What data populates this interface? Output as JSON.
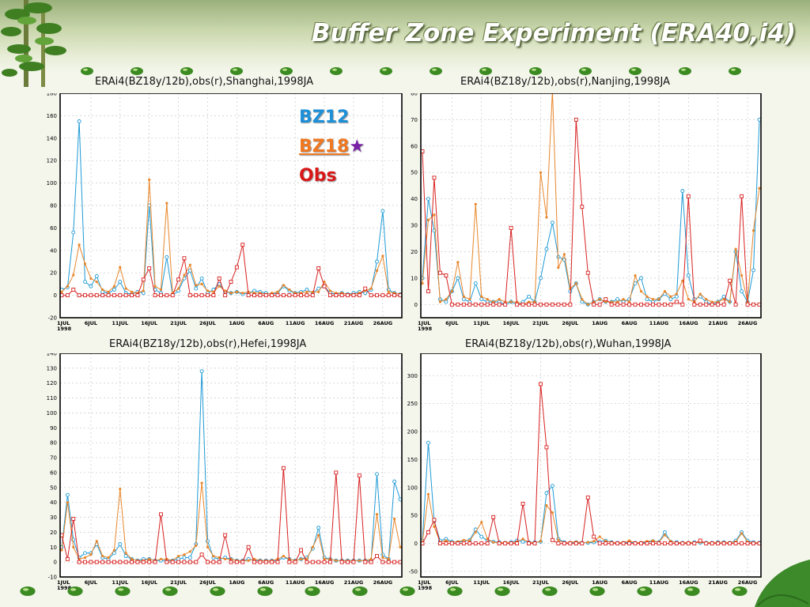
{
  "header": {
    "title": "Buffer Zone Experiment (ERA40,i4)"
  },
  "legend": {
    "bz12": "BZ12",
    "bz18": "BZ18",
    "star": "★",
    "obs": "Obs"
  },
  "colors": {
    "bz12": "#1e9ad6",
    "bz18": "#e8862a",
    "obs": "#d82020",
    "grid": "#c8c8c8"
  },
  "decor": {
    "tree": "bamboo-tree-icon",
    "leaf": "green-leaf-icon",
    "bullets": "green-bead-icon"
  },
  "chart_data": [
    {
      "type": "line",
      "title": "ERAi4(BZ18y/12b),obs(r),Shanghai,1998JA",
      "ylim": [
        -20,
        180
      ],
      "yticks": [
        -20,
        0,
        20,
        40,
        60,
        80,
        100,
        120,
        140,
        160,
        180
      ],
      "xticks": [
        "1JUL\n1998",
        "6JUL",
        "11JUL",
        "16JUL",
        "21JUL",
        "26JUL",
        "1AUG",
        "6AUG",
        "11AUG",
        "16AUG",
        "21AUG",
        "26AUG"
      ],
      "series": [
        {
          "key": "bz12",
          "values": [
            5,
            7,
            56,
            155,
            12,
            8,
            17,
            3,
            2,
            5,
            12,
            2,
            1,
            3,
            2,
            80,
            5,
            2,
            34,
            0,
            4,
            15,
            22,
            6,
            15,
            2,
            5,
            10,
            3,
            2,
            3,
            1,
            2,
            4,
            3,
            2,
            1,
            2,
            8,
            4,
            2,
            3,
            5,
            2,
            6,
            8,
            2,
            1,
            2,
            1,
            2,
            3,
            2,
            5,
            30,
            75,
            5,
            2,
            1
          ]
        },
        {
          "key": "bz18",
          "values": [
            3,
            8,
            18,
            45,
            28,
            15,
            12,
            5,
            3,
            8,
            25,
            6,
            3,
            2,
            4,
            103,
            8,
            5,
            82,
            2,
            6,
            18,
            27,
            9,
            10,
            4,
            3,
            8,
            4,
            2,
            3,
            2,
            3,
            2,
            2,
            1,
            2,
            3,
            9,
            5,
            2,
            2,
            3,
            3,
            3,
            12,
            4,
            2,
            2,
            1,
            1,
            2,
            4,
            6,
            22,
            35,
            3,
            2,
            1
          ]
        },
        {
          "key": "obs",
          "values": [
            0,
            0,
            5,
            0,
            0,
            0,
            0,
            0,
            0,
            0,
            0,
            0,
            0,
            0,
            14,
            24,
            0,
            0,
            0,
            0,
            14,
            33,
            0,
            0,
            0,
            0,
            0,
            15,
            0,
            12,
            25,
            45,
            0,
            0,
            0,
            0,
            0,
            0,
            0,
            0,
            0,
            0,
            0,
            0,
            24,
            8,
            0,
            0,
            0,
            0,
            0,
            0,
            6,
            0,
            0,
            0,
            0,
            0,
            0
          ]
        }
      ]
    },
    {
      "type": "line",
      "title": "ERAi4(BZ18y/12b),obs(r),Nanjing,1998JA",
      "ylim": [
        -5,
        80
      ],
      "yticks": [
        0,
        10,
        20,
        30,
        40,
        50,
        60,
        70,
        80
      ],
      "xticks": [
        "1JUL\n1998",
        "6JUL",
        "11JUL",
        "16JUL",
        "21JUL",
        "26JUL",
        "1AUG",
        "6AUG",
        "11AUG",
        "16AUG",
        "21AUG",
        "26AUG"
      ],
      "series": [
        {
          "key": "bz12",
          "values": [
            10,
            40,
            28,
            2,
            1,
            5,
            10,
            2,
            1,
            8,
            2,
            1,
            1,
            1,
            0,
            1,
            0,
            1,
            3,
            1,
            10,
            21,
            31,
            18,
            17,
            5,
            8,
            1,
            0,
            1,
            2,
            1,
            1,
            2,
            1,
            2,
            8,
            10,
            2,
            1,
            2,
            4,
            2,
            3,
            43,
            11,
            2,
            3,
            1,
            0,
            1,
            3,
            1,
            20,
            5,
            1,
            13,
            70
          ]
        },
        {
          "key": "bz18",
          "values": [
            8,
            32,
            34,
            1,
            2,
            5,
            16,
            3,
            2,
            38,
            3,
            2,
            1,
            2,
            1,
            1,
            1,
            0,
            1,
            1,
            50,
            33,
            81,
            14,
            19,
            6,
            8,
            2,
            0,
            1,
            2,
            1,
            1,
            1,
            2,
            1,
            11,
            5,
            3,
            2,
            2,
            5,
            3,
            4,
            9,
            2,
            1,
            4,
            2,
            1,
            1,
            2,
            1,
            21,
            11,
            1,
            28,
            44
          ]
        },
        {
          "key": "obs",
          "values": [
            58,
            5,
            48,
            12,
            11,
            0,
            0,
            0,
            0,
            0,
            0,
            0,
            0,
            0,
            0,
            29,
            0,
            0,
            0,
            0,
            0,
            0,
            0,
            0,
            0,
            0,
            70,
            37,
            12,
            0,
            0,
            2,
            0,
            0,
            0,
            0,
            0,
            0,
            0,
            0,
            0,
            0,
            0,
            1,
            0,
            41,
            0,
            0,
            0,
            0,
            0,
            0,
            9,
            0,
            41,
            0,
            0,
            0
          ]
        }
      ]
    },
    {
      "type": "line",
      "title": "ERAi4(BZ18y/12b),obs(r),Hefei,1998JA",
      "ylim": [
        -10,
        140
      ],
      "yticks": [
        -10,
        0,
        10,
        20,
        30,
        40,
        50,
        60,
        70,
        80,
        90,
        100,
        110,
        120,
        130,
        140
      ],
      "xticks": [
        "1JUL\n1998",
        "6JUL",
        "11JUL",
        "16JUL",
        "21JUL",
        "26JUL",
        "1AUG",
        "6AUG",
        "11AUG",
        "16AUG",
        "21AUG",
        "26AUG"
      ],
      "series": [
        {
          "key": "bz12",
          "values": [
            10,
            45,
            15,
            3,
            6,
            6,
            12,
            3,
            2,
            6,
            12,
            4,
            2,
            1,
            2,
            2,
            1,
            1,
            1,
            1,
            2,
            3,
            3,
            12,
            128,
            14,
            3,
            2,
            3,
            2,
            1,
            1,
            2,
            1,
            1,
            1,
            1,
            1,
            3,
            2,
            1,
            2,
            3,
            9,
            23,
            3,
            2,
            1,
            1,
            1,
            1,
            1,
            1,
            1,
            59,
            5,
            2,
            54,
            42
          ]
        },
        {
          "key": "bz18",
          "values": [
            8,
            40,
            10,
            2,
            3,
            5,
            14,
            4,
            3,
            8,
            49,
            6,
            2,
            1,
            1,
            2,
            1,
            2,
            2,
            1,
            4,
            5,
            7,
            11,
            53,
            10,
            4,
            3,
            2,
            2,
            1,
            1,
            1,
            2,
            1,
            1,
            1,
            2,
            4,
            2,
            1,
            2,
            2,
            10,
            18,
            2,
            2,
            1,
            1,
            1,
            1,
            1,
            1,
            2,
            32,
            3,
            2,
            29,
            10
          ]
        },
        {
          "key": "obs",
          "values": [
            18,
            2,
            29,
            0,
            0,
            0,
            0,
            0,
            0,
            0,
            0,
            0,
            0,
            0,
            0,
            0,
            0,
            32,
            0,
            0,
            0,
            0,
            0,
            0,
            5,
            0,
            0,
            0,
            18,
            0,
            0,
            0,
            10,
            0,
            0,
            0,
            0,
            0,
            63,
            0,
            0,
            8,
            0,
            0,
            0,
            0,
            0,
            60,
            0,
            0,
            0,
            58,
            0,
            0,
            4,
            0,
            0,
            0,
            0
          ]
        }
      ]
    },
    {
      "type": "line",
      "title": "ERAi4(BZ18y/12b),obs(r),Wuhan,1998JA",
      "ylim": [
        -60,
        340
      ],
      "yticks": [
        -50,
        0,
        50,
        100,
        150,
        200,
        250,
        300
      ],
      "xticks": [
        "1JUL\n1998",
        "6JUL",
        "11JUL",
        "16JUL",
        "21JUL",
        "26JUL",
        "1AUG",
        "6AUG",
        "11AUG",
        "16AUG",
        "21AUG",
        "26AUG"
      ],
      "series": [
        {
          "key": "bz12",
          "values": [
            5,
            180,
            40,
            5,
            8,
            3,
            2,
            4,
            6,
            25,
            12,
            5,
            3,
            2,
            1,
            2,
            5,
            3,
            2,
            2,
            3,
            90,
            103,
            8,
            2,
            1,
            2,
            1,
            1,
            2,
            3,
            5,
            2,
            1,
            1,
            2,
            1,
            1,
            2,
            4,
            2,
            20,
            3,
            2,
            1,
            1,
            2,
            1,
            1,
            1,
            2,
            2,
            1,
            5,
            20,
            5,
            2,
            1
          ]
        },
        {
          "key": "bz18",
          "values": [
            2,
            88,
            30,
            2,
            5,
            2,
            3,
            6,
            5,
            20,
            38,
            8,
            2,
            1,
            2,
            1,
            3,
            8,
            2,
            1,
            4,
            68,
            55,
            6,
            1,
            2,
            3,
            1,
            2,
            4,
            12,
            4,
            2,
            1,
            2,
            5,
            1,
            2,
            4,
            5,
            2,
            15,
            4,
            1,
            1,
            2,
            1,
            2,
            1,
            1,
            2,
            2,
            1,
            3,
            18,
            3,
            1,
            1
          ]
        },
        {
          "key": "obs",
          "values": [
            0,
            20,
            42,
            0,
            0,
            0,
            0,
            0,
            0,
            0,
            0,
            0,
            47,
            0,
            0,
            0,
            0,
            71,
            0,
            0,
            285,
            172,
            6,
            0,
            0,
            0,
            0,
            0,
            82,
            12,
            0,
            0,
            0,
            0,
            0,
            0,
            0,
            0,
            0,
            0,
            0,
            0,
            0,
            0,
            0,
            0,
            0,
            5,
            0,
            0,
            0,
            0,
            0,
            0,
            0,
            0,
            0,
            0
          ]
        }
      ]
    }
  ]
}
